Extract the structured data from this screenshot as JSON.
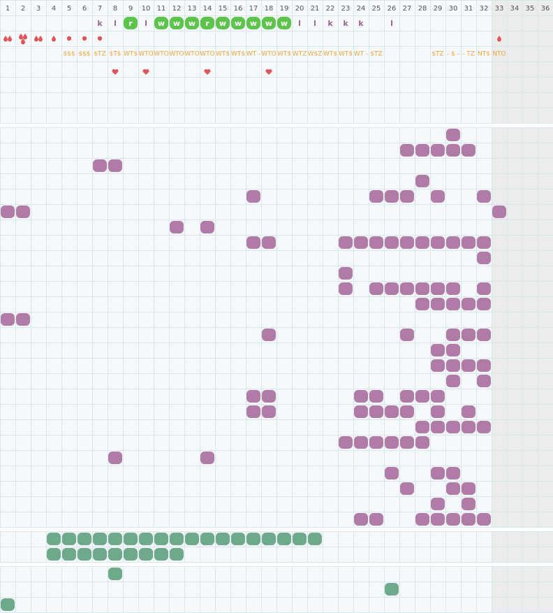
{
  "columns": [
    1,
    2,
    3,
    4,
    5,
    6,
    7,
    8,
    9,
    10,
    11,
    12,
    13,
    14,
    15,
    16,
    17,
    18,
    19,
    20,
    21,
    22,
    23,
    24,
    25,
    26,
    27,
    28,
    29,
    30,
    31,
    32,
    33,
    34,
    35,
    36
  ],
  "letters": [
    {
      "col": 7,
      "text": "k"
    },
    {
      "col": 8,
      "text": "l"
    },
    {
      "col": 9,
      "text": "r",
      "badge": true
    },
    {
      "col": 10,
      "text": "l"
    },
    {
      "col": 11,
      "text": "w",
      "badge": true
    },
    {
      "col": 12,
      "text": "w",
      "badge": true
    },
    {
      "col": 13,
      "text": "w",
      "badge": true
    },
    {
      "col": 14,
      "text": "r",
      "badge": true
    },
    {
      "col": 15,
      "text": "w",
      "badge": true
    },
    {
      "col": 16,
      "text": "w",
      "badge": true
    },
    {
      "col": 17,
      "text": "w",
      "badge": true
    },
    {
      "col": 18,
      "text": "w",
      "badge": true
    },
    {
      "col": 19,
      "text": "w",
      "badge": true
    },
    {
      "col": 20,
      "text": "l"
    },
    {
      "col": 21,
      "text": "l"
    },
    {
      "col": 22,
      "text": "k"
    },
    {
      "col": 23,
      "text": "k"
    },
    {
      "col": 24,
      "text": "k"
    },
    {
      "col": 26,
      "text": "l"
    }
  ],
  "drops": [
    {
      "col": 1,
      "icon": "drop",
      "count": 2
    },
    {
      "col": 2,
      "icon": "drop",
      "count": 3
    },
    {
      "col": 3,
      "icon": "drop",
      "count": 2
    },
    {
      "col": 4,
      "icon": "drop",
      "count": 1
    },
    {
      "col": 5,
      "icon": "dot",
      "count": 1
    },
    {
      "col": 6,
      "icon": "dot",
      "count": 1
    },
    {
      "col": 7,
      "icon": "dot",
      "count": 1
    },
    {
      "col": 33,
      "icon": "drop",
      "count": 1
    }
  ],
  "codes": [
    {
      "col": 5,
      "text": "$$$"
    },
    {
      "col": 6,
      "text": "$$$"
    },
    {
      "col": 7,
      "text": "$TZ"
    },
    {
      "col": 8,
      "text": "$T$"
    },
    {
      "col": 9,
      "text": "WT$"
    },
    {
      "col": 10,
      "text": "WTO"
    },
    {
      "col": 11,
      "text": "WTO"
    },
    {
      "col": 12,
      "text": "WTO"
    },
    {
      "col": 13,
      "text": "WTO"
    },
    {
      "col": 14,
      "text": "WTO"
    },
    {
      "col": 15,
      "text": "WT$"
    },
    {
      "col": 16,
      "text": "WT$"
    },
    {
      "col": 17,
      "text": "WT -"
    },
    {
      "col": 18,
      "text": "WTO"
    },
    {
      "col": 19,
      "text": "WT$"
    },
    {
      "col": 20,
      "text": "WTZ"
    },
    {
      "col": 21,
      "text": "W$Z"
    },
    {
      "col": 22,
      "text": "WT$"
    },
    {
      "col": 23,
      "text": "WT$"
    },
    {
      "col": 24,
      "text": "WT -"
    },
    {
      "col": 25,
      "text": "$TZ"
    },
    {
      "col": 29,
      "text": "$TZ"
    },
    {
      "col": 30,
      "text": "- $ -"
    },
    {
      "col": 31,
      "text": "- TZ"
    },
    {
      "col": 32,
      "text": "NT$"
    },
    {
      "col": 33,
      "text": "NTO"
    }
  ],
  "hearts": [
    8,
    10,
    14,
    18
  ],
  "grid_a": [
    [
      30
    ],
    [
      27,
      28,
      29,
      30,
      31
    ],
    [
      7,
      8
    ],
    [
      28
    ],
    [
      17,
      25,
      26,
      27,
      29,
      32
    ],
    [
      1,
      2,
      33
    ],
    [
      12,
      14
    ],
    [
      17,
      18,
      23,
      24,
      25,
      26,
      27,
      28,
      29,
      30,
      31,
      32
    ],
    [
      32
    ],
    [
      23
    ],
    [
      23,
      25,
      26,
      27,
      28,
      29,
      30,
      32
    ],
    [
      28,
      29,
      30,
      31,
      32
    ],
    [
      1,
      2
    ],
    [
      18,
      27,
      30,
      31,
      32
    ],
    [
      29,
      30
    ],
    [
      29,
      30,
      31,
      32
    ],
    [
      30,
      32
    ],
    [
      17,
      18,
      24,
      25,
      27,
      28,
      29
    ],
    [
      17,
      18,
      24,
      25,
      26,
      27,
      29,
      31
    ],
    [
      28,
      29,
      30,
      31,
      32
    ],
    [
      23,
      24,
      25,
      26,
      27,
      28
    ],
    [
      8,
      14
    ],
    [
      26,
      29,
      30
    ],
    [
      27,
      30,
      31
    ],
    [
      29,
      31
    ],
    [
      24,
      25,
      28,
      29,
      30,
      31,
      32
    ]
  ],
  "grid_b": [
    [
      4,
      5,
      6,
      7,
      8,
      9,
      10,
      11,
      12,
      13,
      14,
      15,
      16,
      17,
      18,
      19,
      20,
      21
    ],
    [
      4,
      5,
      6,
      7,
      8,
      9,
      10,
      11,
      12
    ]
  ],
  "grid_c": [
    [
      8
    ],
    [
      26
    ],
    [
      1
    ]
  ]
}
